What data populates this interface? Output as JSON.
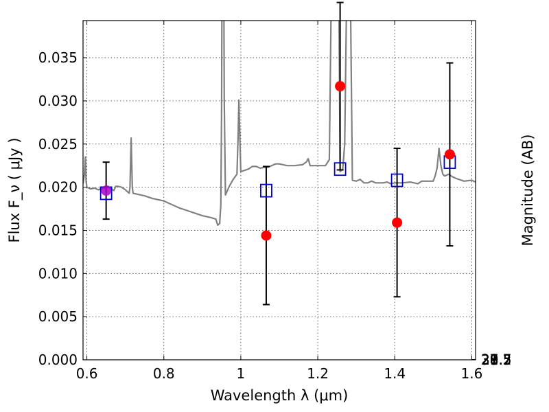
{
  "chart_data": {
    "type": "scatter",
    "xlabel": "Wavelength  λ (μm)",
    "ylabel": "Flux  F_ν  ( μJy )",
    "y2label": "Magnitude (AB)",
    "xlim": [
      0.59,
      1.61
    ],
    "ylim": [
      0.0,
      0.0393
    ],
    "x_ticks": [
      0.6,
      0.8,
      1.0,
      1.2,
      1.4,
      1.6
    ],
    "x_tick_labels": [
      "0.6",
      "0.8",
      "1",
      "1.2",
      "1.4",
      "1.6"
    ],
    "y_ticks": [
      0.0,
      0.005,
      0.01,
      0.015,
      0.02,
      0.025,
      0.03,
      0.035
    ],
    "y_tick_labels": [
      "0.000",
      "0.005",
      "0.010",
      "0.015",
      "0.020",
      "0.025",
      "0.030",
      "0.035"
    ],
    "mag_ticks": [
      27.5,
      27.7,
      28,
      28.2,
      28.5,
      29,
      29.5,
      30,
      31
    ],
    "mag_tick_labels": [
      "27.5",
      "27.7",
      "28",
      "28.2",
      "28.5",
      "29",
      "29.5",
      "30",
      "31"
    ],
    "grid": true,
    "observed": {
      "color": "#ff0000",
      "marker": "circle",
      "points": [
        {
          "x": 0.65,
          "y": 0.0196,
          "err": 0.0033
        },
        {
          "x": 1.066,
          "y": 0.0144,
          "err": 0.008
        },
        {
          "x": 1.258,
          "y": 0.0317,
          "err": 0.0097
        },
        {
          "x": 1.406,
          "y": 0.0159,
          "err": 0.0086
        },
        {
          "x": 1.543,
          "y": 0.0238,
          "err": 0.0106
        }
      ]
    },
    "model_photometry": {
      "color": "#0000cc",
      "marker": "square",
      "points": [
        {
          "x": 0.65,
          "y": 0.0193
        },
        {
          "x": 1.066,
          "y": 0.0196
        },
        {
          "x": 1.258,
          "y": 0.0221
        },
        {
          "x": 1.406,
          "y": 0.0208
        },
        {
          "x": 1.543,
          "y": 0.0229
        }
      ]
    },
    "model_spectrum": {
      "color": "#808080",
      "points": [
        [
          0.59,
          0.0204
        ],
        [
          0.594,
          0.0216
        ],
        [
          0.596,
          0.0235
        ],
        [
          0.598,
          0.0207
        ],
        [
          0.6,
          0.02
        ],
        [
          0.61,
          0.0198
        ],
        [
          0.62,
          0.0199
        ],
        [
          0.63,
          0.0197
        ],
        [
          0.64,
          0.0199
        ],
        [
          0.65,
          0.0199
        ],
        [
          0.655,
          0.0201
        ],
        [
          0.66,
          0.0199
        ],
        [
          0.67,
          0.0196
        ],
        [
          0.675,
          0.0201
        ],
        [
          0.68,
          0.0201
        ],
        [
          0.69,
          0.02
        ],
        [
          0.7,
          0.0197
        ],
        [
          0.71,
          0.0193
        ],
        [
          0.712,
          0.02
        ],
        [
          0.715,
          0.0257
        ],
        [
          0.718,
          0.02
        ],
        [
          0.72,
          0.0193
        ],
        [
          0.73,
          0.0192
        ],
        [
          0.75,
          0.019
        ],
        [
          0.77,
          0.0187
        ],
        [
          0.8,
          0.0184
        ],
        [
          0.82,
          0.018
        ],
        [
          0.84,
          0.0176
        ],
        [
          0.86,
          0.0173
        ],
        [
          0.88,
          0.017
        ],
        [
          0.9,
          0.0167
        ],
        [
          0.92,
          0.0165
        ],
        [
          0.935,
          0.0163
        ],
        [
          0.94,
          0.0156
        ],
        [
          0.945,
          0.0158
        ],
        [
          0.948,
          0.018
        ],
        [
          0.95,
          0.029
        ],
        [
          0.951,
          0.042
        ],
        [
          0.956,
          0.042
        ],
        [
          0.957,
          0.03
        ],
        [
          0.96,
          0.0191
        ],
        [
          0.97,
          0.0201
        ],
        [
          0.98,
          0.0209
        ],
        [
          0.99,
          0.0215
        ],
        [
          0.993,
          0.026
        ],
        [
          0.995,
          0.0301
        ],
        [
          0.998,
          0.025
        ],
        [
          1.0,
          0.0218
        ],
        [
          1.02,
          0.0221
        ],
        [
          1.03,
          0.0224
        ],
        [
          1.04,
          0.0224
        ],
        [
          1.05,
          0.0222
        ],
        [
          1.06,
          0.0223
        ],
        [
          1.07,
          0.0223
        ],
        [
          1.09,
          0.0227
        ],
        [
          1.1,
          0.0227
        ],
        [
          1.12,
          0.0225
        ],
        [
          1.14,
          0.0225
        ],
        [
          1.16,
          0.0226
        ],
        [
          1.17,
          0.0229
        ],
        [
          1.175,
          0.0233
        ],
        [
          1.18,
          0.0225
        ],
        [
          1.2,
          0.0225
        ],
        [
          1.22,
          0.0225
        ],
        [
          1.23,
          0.0232
        ],
        [
          1.235,
          0.042
        ],
        [
          1.255,
          0.042
        ],
        [
          1.258,
          0.0218
        ],
        [
          1.265,
          0.0221
        ],
        [
          1.27,
          0.025
        ],
        [
          1.275,
          0.042
        ],
        [
          1.285,
          0.042
        ],
        [
          1.29,
          0.0208
        ],
        [
          1.3,
          0.0207
        ],
        [
          1.31,
          0.0209
        ],
        [
          1.32,
          0.0205
        ],
        [
          1.33,
          0.0205
        ],
        [
          1.34,
          0.0207
        ],
        [
          1.35,
          0.0205
        ],
        [
          1.36,
          0.0205
        ],
        [
          1.37,
          0.0205
        ],
        [
          1.38,
          0.0206
        ],
        [
          1.39,
          0.0204
        ],
        [
          1.4,
          0.0205
        ],
        [
          1.42,
          0.0205
        ],
        [
          1.44,
          0.0206
        ],
        [
          1.46,
          0.0204
        ],
        [
          1.47,
          0.0207
        ],
        [
          1.48,
          0.0207
        ],
        [
          1.5,
          0.0207
        ],
        [
          1.505,
          0.0213
        ],
        [
          1.51,
          0.0222
        ],
        [
          1.515,
          0.0245
        ],
        [
          1.52,
          0.0225
        ],
        [
          1.525,
          0.0215
        ],
        [
          1.53,
          0.0213
        ],
        [
          1.54,
          0.0215
        ],
        [
          1.55,
          0.0212
        ],
        [
          1.56,
          0.021
        ],
        [
          1.58,
          0.0207
        ],
        [
          1.6,
          0.0208
        ],
        [
          1.61,
          0.0206
        ]
      ]
    }
  }
}
